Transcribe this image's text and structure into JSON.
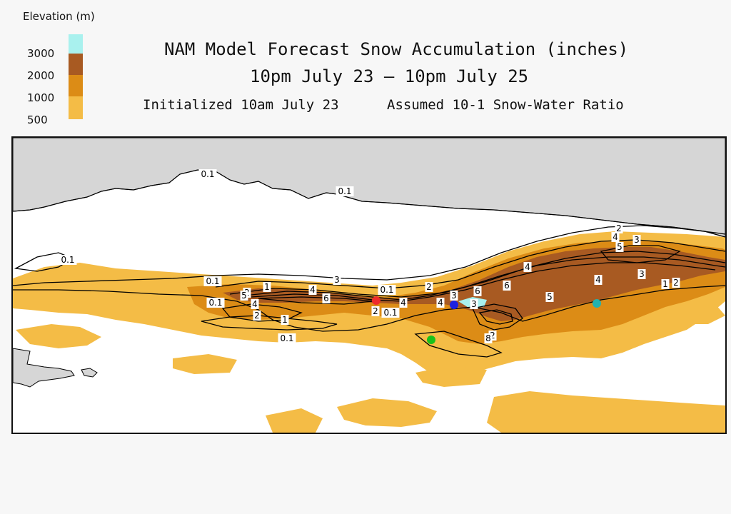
{
  "legend": {
    "title": "Elevation (m)",
    "levels": [
      {
        "label": "3000",
        "color": "#a9f1ee"
      },
      {
        "label": "2000",
        "color": "#a85a22"
      },
      {
        "label": "1000",
        "color": "#dc8c16"
      },
      {
        "label": "500",
        "color": "#f4bc46"
      }
    ]
  },
  "header": {
    "title": "NAM Model Forecast Snow Accumulation (inches)",
    "subtitle": "10pm July 23 — 10pm July 25",
    "initialized": "Initialized 10am July 23",
    "ratio": "Assumed 10-1 Snow-Water Ratio"
  },
  "map": {
    "ocean_color": "#d6d6d6",
    "land_color": "#ffffff",
    "contour_labels": [
      "0.1",
      "0.1",
      "0.1",
      "0.1",
      "0.1",
      "0.1",
      "0.1",
      "0.1",
      "1",
      "1",
      "1",
      "2",
      "2",
      "2",
      "2",
      "2",
      "2",
      "2",
      "3",
      "3",
      "3",
      "3",
      "3",
      "4",
      "4",
      "4",
      "4",
      "4",
      "4",
      "4",
      "5",
      "5",
      "5",
      "6",
      "6",
      "6",
      "8",
      "1"
    ],
    "markers": [
      {
        "name": "red-location-marker",
        "color": "#ee2b2b"
      },
      {
        "name": "blue-location-marker",
        "color": "#1d22e0"
      },
      {
        "name": "green-location-marker",
        "color": "#19c219"
      },
      {
        "name": "teal-location-marker",
        "color": "#22b2b0"
      }
    ]
  }
}
